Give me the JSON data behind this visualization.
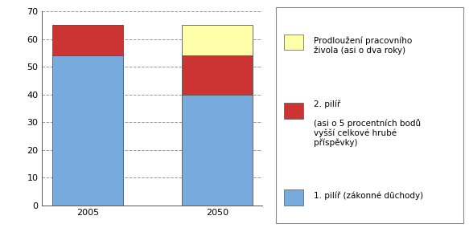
{
  "categories": [
    "2005",
    "2050"
  ],
  "pilir1": [
    54,
    40
  ],
  "pilir2": [
    11,
    14
  ],
  "pilir3": [
    0,
    11
  ],
  "color1": "#77AADD",
  "color2": "#CC3333",
  "color3": "#FFFFAA",
  "ylim": [
    0,
    70
  ],
  "yticks": [
    0,
    10,
    20,
    30,
    40,
    50,
    60,
    70
  ],
  "legend1": "1. pilíř (zákonné dūchody)",
  "legend2_title": "2. pilíř",
  "legend2_body": "(asi o 5 procentních bodů\nvyšší celkové hrubé\npříspěvky)",
  "legend3": "Prodloužení pracovního\nživola (asi o dva roky)",
  "background_color": "#ffffff",
  "grid_color": "#999999",
  "bar_width": 0.55,
  "edge_color": "#555555",
  "font_size": 8
}
